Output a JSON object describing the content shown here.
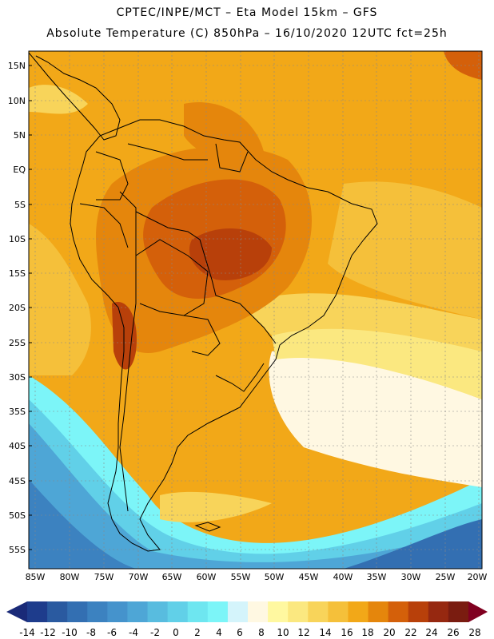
{
  "header": {
    "title_line1": "CPTEC/INPE/MCT  –   Eta Model 15km – GFS",
    "title_line2": "Absolute Temperature (C) 850hPa – 16/10/2020 12UTC fct=25h"
  },
  "map": {
    "lat_labels": [
      "15N",
      "10N",
      "5N",
      "EQ",
      "5S",
      "10S",
      "15S",
      "20S",
      "25S",
      "30S",
      "35S",
      "40S",
      "45S",
      "50S",
      "55S"
    ],
    "lon_labels": [
      "85W",
      "80W",
      "75W",
      "70W",
      "65W",
      "60W",
      "55W",
      "50W",
      "45W",
      "40W",
      "35W",
      "30W",
      "25W",
      "20W"
    ]
  },
  "colorbar": {
    "ticks": [
      "-14",
      "-12",
      "-10",
      "-8",
      "-6",
      "-4",
      "-2",
      "0",
      "2",
      "4",
      "6",
      "8",
      "10",
      "12",
      "14",
      "16",
      "18",
      "20",
      "22",
      "24",
      "26",
      "28"
    ],
    "colors": [
      "#1e3c8c",
      "#2a5aa0",
      "#336fb2",
      "#3c82c0",
      "#4593cc",
      "#4ea6d6",
      "#58bcdf",
      "#61d0e8",
      "#6ee6f0",
      "#7cf5f8",
      "#d4f4fb",
      "#fff8e2",
      "#fff8a0",
      "#fbe880",
      "#f8d45a",
      "#f5c03a",
      "#f2a818",
      "#e5860c",
      "#d4600a",
      "#b8400a",
      "#962810",
      "#7a1c10"
    ],
    "under_color": "#1a2a78",
    "over_color": "#800020"
  }
}
